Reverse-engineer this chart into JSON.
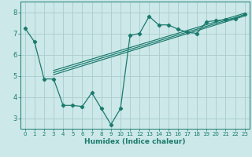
{
  "xlabel": "Humidex (Indice chaleur)",
  "background_color": "#cce8e8",
  "grid_color": "#aacccc",
  "line_color": "#1a7a6e",
  "xlim": [
    -0.5,
    23.5
  ],
  "ylim": [
    2.5,
    8.5
  ],
  "yticks": [
    3,
    4,
    5,
    6,
    7,
    8
  ],
  "xticks": [
    0,
    1,
    2,
    3,
    4,
    5,
    6,
    7,
    8,
    9,
    10,
    11,
    12,
    13,
    14,
    15,
    16,
    17,
    18,
    19,
    20,
    21,
    22,
    23
  ],
  "scatter_x": [
    0,
    1,
    2,
    3,
    4,
    5,
    6,
    7,
    8,
    9,
    10,
    11,
    12,
    13,
    14,
    15,
    16,
    17,
    18,
    19,
    20,
    21,
    22,
    23
  ],
  "scatter_y": [
    7.25,
    6.6,
    4.85,
    4.85,
    3.6,
    3.6,
    3.55,
    4.2,
    3.45,
    2.7,
    3.45,
    6.9,
    7.0,
    7.8,
    7.4,
    7.4,
    7.2,
    7.05,
    7.0,
    7.55,
    7.6,
    7.65,
    7.7,
    7.9
  ],
  "line1_x": [
    3.0,
    23
  ],
  "line1_y": [
    5.05,
    7.82
  ],
  "line2_x": [
    3.0,
    23
  ],
  "line2_y": [
    5.15,
    7.88
  ],
  "line3_x": [
    3.0,
    23
  ],
  "line3_y": [
    5.25,
    7.95
  ]
}
